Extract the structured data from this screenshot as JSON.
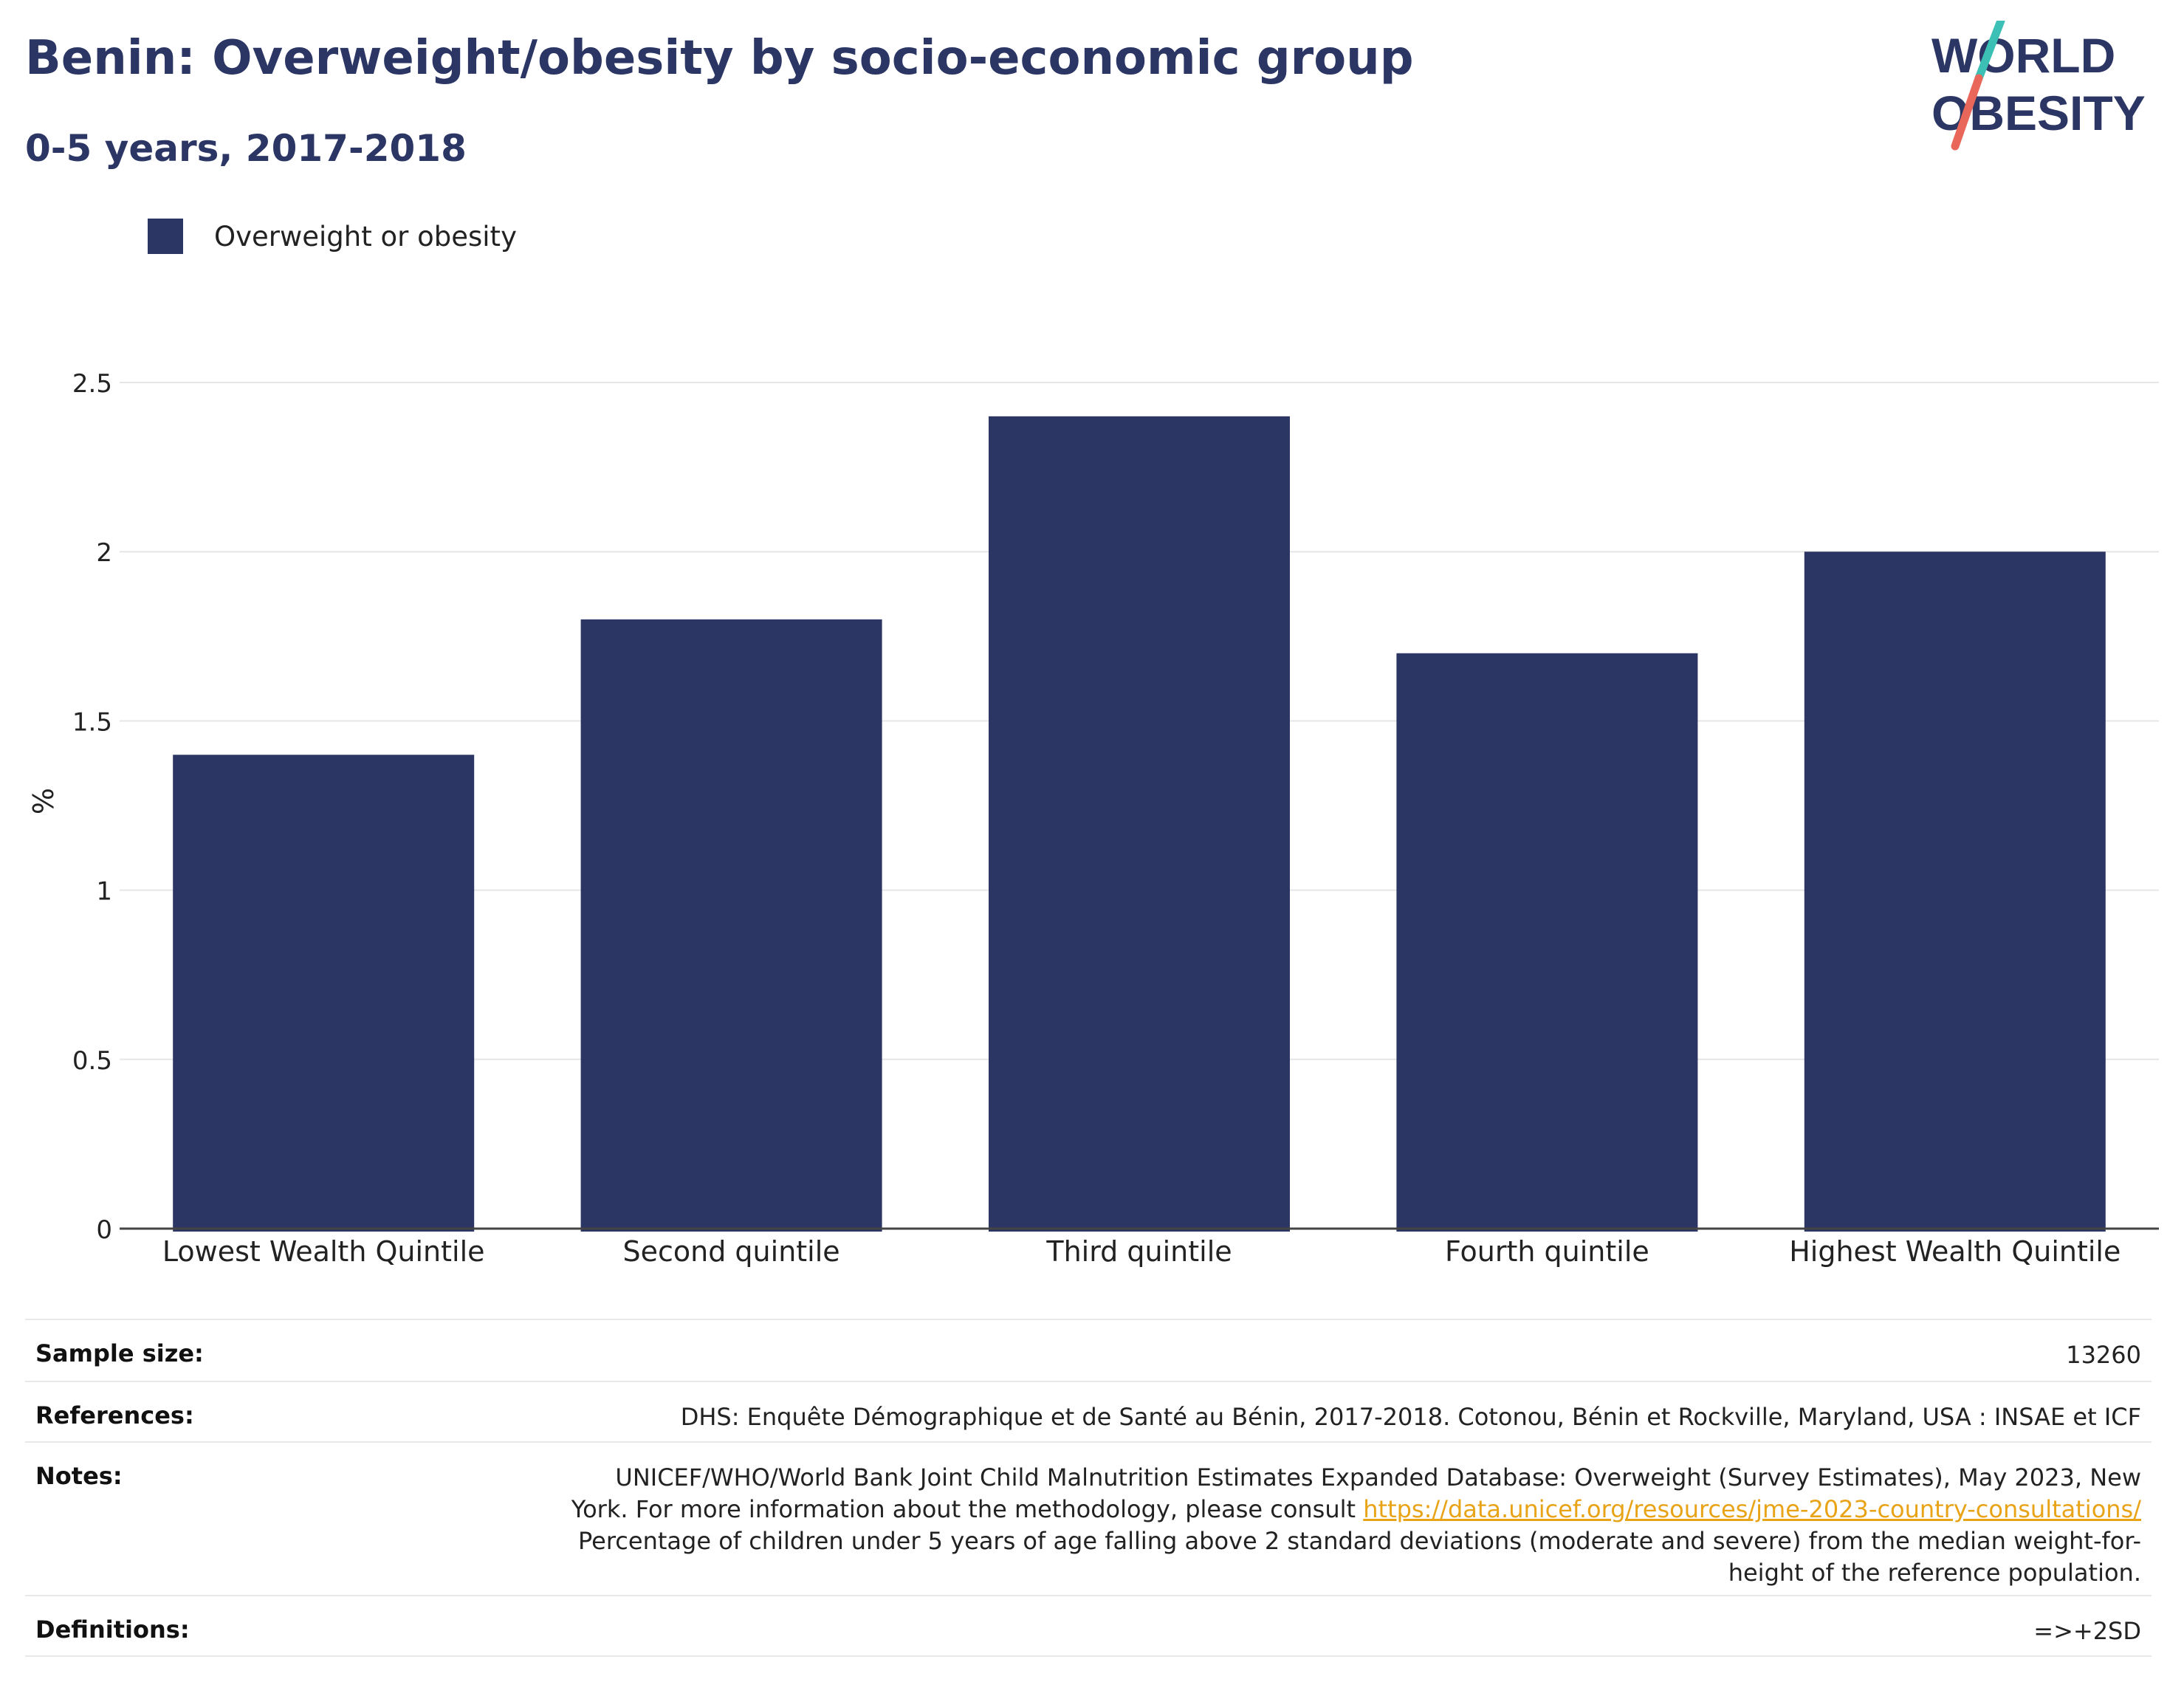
{
  "header": {
    "title": "Benin: Overweight/obesity by socio-economic group",
    "subtitle": "0-5 years, 2017-2018"
  },
  "logo": {
    "line1": "WORLD",
    "line2": "OBESITY",
    "colors": {
      "text": "#2b3664",
      "slash_top": "#3cbfb4",
      "slash_bottom": "#e8675a"
    }
  },
  "legend": {
    "label": "Overweight or obesity",
    "color": "#2b3664"
  },
  "chart_data": {
    "type": "bar",
    "categories": [
      "Lowest Wealth Quintile",
      "Second quintile",
      "Third quintile",
      "Fourth quintile",
      "Highest Wealth Quintile"
    ],
    "series": [
      {
        "name": "Overweight or obesity",
        "values": [
          1.4,
          1.8,
          2.4,
          1.7,
          2.0
        ],
        "color": "#2b3664"
      }
    ],
    "ylabel": "%",
    "xlabel": "",
    "ylim": [
      0,
      2.5
    ],
    "yticks": [
      0,
      0.5,
      1,
      1.5,
      2,
      2.5
    ],
    "ytick_labels": [
      "0",
      "0.5",
      "1",
      "1.5",
      "2",
      "2.5"
    ],
    "grid": true,
    "legend_position": "top-left"
  },
  "info_table": {
    "sample_size": {
      "label": "Sample size:",
      "value": "13260"
    },
    "references": {
      "label": "References:",
      "value": "DHS: Enquête Démographique et de Santé au Bénin, 2017-2018. Cotonou, Bénin et Rockville, Maryland, USA : INSAE et ICF"
    },
    "notes": {
      "label": "Notes:",
      "text_before": "UNICEF/WHO/World Bank Joint Child Malnutrition Estimates Expanded Database: Overweight (Survey Estimates), May 2023, New York. For more information about the methodology, please consult",
      "link": "https://data.unicef.org/resources/jme-2023-country-consultations/",
      "text_after": "Percentage of children under 5 years of age falling above 2 standard deviations (moderate and severe) from the median weight-for-height of the reference population."
    },
    "definitions": {
      "label": "Definitions:",
      "value": "=>+2SD"
    }
  }
}
